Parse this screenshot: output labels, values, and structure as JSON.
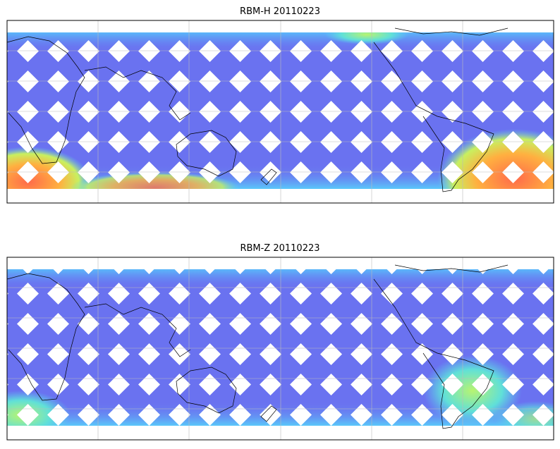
{
  "panels": [
    {
      "title": "RBM-H 20110223"
    },
    {
      "title": "RBM-Z 20110223"
    }
  ]
}
